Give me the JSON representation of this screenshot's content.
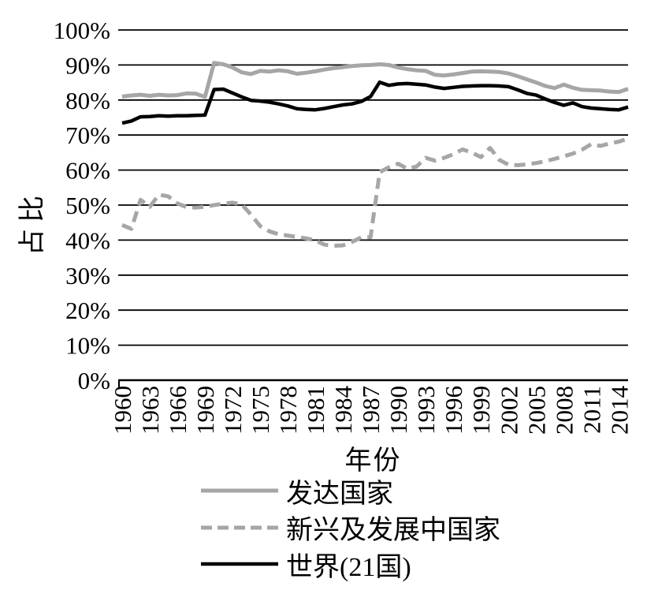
{
  "chart_data": {
    "type": "line",
    "xlabel": "年份",
    "ylabel": "占比",
    "ylim": [
      0,
      100
    ],
    "grid": "horizontal-black-lines",
    "legend_position": "bottom",
    "background": "#ffffff",
    "y_tick_labels": [
      "0%",
      "10%",
      "20%",
      "30%",
      "40%",
      "50%",
      "60%",
      "70%",
      "80%",
      "90%",
      "100%"
    ],
    "x_tick_labels": [
      "1960",
      "1963",
      "1966",
      "1969",
      "1972",
      "1975",
      "1978",
      "1981",
      "1984",
      "1987",
      "1990",
      "1993",
      "1996",
      "1999",
      "2002",
      "2005",
      "2008",
      "2011",
      "2014"
    ],
    "x": [
      1960,
      1961,
      1962,
      1963,
      1964,
      1965,
      1966,
      1967,
      1968,
      1969,
      1970,
      1971,
      1972,
      1973,
      1974,
      1975,
      1976,
      1977,
      1978,
      1979,
      1980,
      1981,
      1982,
      1983,
      1984,
      1985,
      1986,
      1987,
      1988,
      1989,
      1990,
      1991,
      1992,
      1993,
      1994,
      1995,
      1996,
      1997,
      1998,
      1999,
      2000,
      2001,
      2002,
      2003,
      2004,
      2005,
      2006,
      2007,
      2008,
      2009,
      2010,
      2011,
      2012,
      2013,
      2014,
      2015
    ],
    "series": [
      {
        "key": "developed",
        "name": "发达国家",
        "color": "#a6a6a6",
        "line_style": "solid",
        "stroke_width": 5,
        "values": [
          81.0,
          81.3,
          81.5,
          81.2,
          81.5,
          81.3,
          81.4,
          81.9,
          81.8,
          80.9,
          90.6,
          90.2,
          89.3,
          87.9,
          87.4,
          88.3,
          88.1,
          88.5,
          88.2,
          87.5,
          87.8,
          88.2,
          88.7,
          89.1,
          89.4,
          89.7,
          89.9,
          90.0,
          90.2,
          90.0,
          89.3,
          88.8,
          88.5,
          88.3,
          87.2,
          87.0,
          87.3,
          87.7,
          88.1,
          88.2,
          88.1,
          88.0,
          87.6,
          86.8,
          85.9,
          85.0,
          84.0,
          83.4,
          84.4,
          83.5,
          82.9,
          82.8,
          82.7,
          82.4,
          82.3,
          83.2
        ]
      },
      {
        "key": "emerging",
        "name": "新兴及发展中国家",
        "color": "#a6a6a6",
        "line_style": "dashed",
        "stroke_width": 5,
        "values": [
          44.3,
          43.2,
          51.5,
          49.5,
          53.0,
          52.5,
          50.5,
          49.4,
          49.3,
          49.5,
          50.0,
          50.4,
          50.7,
          50.2,
          47.3,
          44.0,
          42.5,
          41.7,
          41.3,
          40.9,
          40.5,
          39.9,
          38.7,
          38.4,
          38.5,
          39.5,
          40.8,
          40.8,
          59.4,
          60.8,
          61.8,
          60.4,
          61.0,
          63.5,
          62.7,
          63.5,
          64.5,
          65.9,
          65.0,
          63.7,
          66.3,
          62.9,
          61.5,
          61.4,
          61.6,
          62.0,
          62.5,
          63.2,
          63.9,
          64.7,
          65.8,
          67.4,
          66.9,
          67.6,
          68.1,
          69.0
        ]
      },
      {
        "key": "world",
        "name": "世界(21国)",
        "color": "#000000",
        "line_style": "solid",
        "stroke_width": 4.5,
        "values": [
          73.4,
          74.0,
          75.2,
          75.3,
          75.5,
          75.4,
          75.5,
          75.5,
          75.6,
          75.7,
          83.0,
          83.1,
          82.0,
          80.9,
          79.9,
          79.7,
          79.4,
          78.9,
          78.3,
          77.5,
          77.3,
          77.2,
          77.6,
          78.1,
          78.6,
          78.9,
          79.6,
          81.0,
          85.1,
          84.2,
          84.6,
          84.7,
          84.5,
          84.3,
          83.7,
          83.3,
          83.6,
          83.9,
          84.0,
          84.1,
          84.1,
          84.0,
          83.8,
          82.9,
          81.9,
          81.4,
          80.3,
          79.3,
          78.5,
          79.2,
          78.1,
          77.7,
          77.5,
          77.3,
          77.2,
          78.0
        ]
      }
    ]
  }
}
